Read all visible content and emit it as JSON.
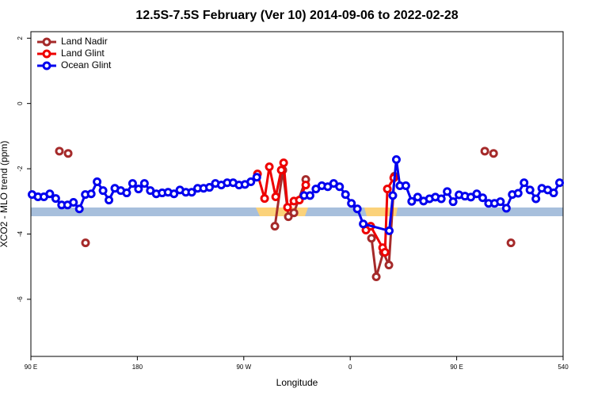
{
  "chart_data": {
    "type": "line",
    "title": "12.5S-7.5S February (Ver 10)   2014-09-06 to 2022-02-28",
    "x_label": "Longitude",
    "y_label": "XCO2 - MLO trend (ppm)",
    "xlim": [
      90,
      540
    ],
    "ylim": [
      -7.75,
      2.2
    ],
    "xticks": [
      {
        "value": 90,
        "label": "90 E"
      },
      180,
      {
        "value": 270,
        "label": "90 W"
      },
      {
        "value": 360,
        "label": "0"
      },
      {
        "value": 450,
        "label": "90 E"
      },
      540
    ],
    "yticks": [
      2,
      0,
      -2,
      -4,
      -6
    ],
    "legend": "top-left",
    "series": [
      {
        "name": "Land Nadir",
        "color": "#a52a2a",
        "x": [
          114.1,
          null,
          121.5,
          null,
          136.2,
          null,
          296.3,
          303,
          307.7,
          312.4,
          322.4,
          null,
          378,
          382,
          388,
          392.7,
          397.4,
          null,
          473.8,
          null,
          481.2,
          null,
          495.9
        ],
        "values": [
          -1.46,
          null,
          -1.53,
          null,
          -4.27,
          null,
          -3.76,
          -2.04,
          -3.47,
          -3.35,
          -2.33,
          null,
          -4.13,
          -5.31,
          -4.56,
          -4.95,
          -2.23,
          null,
          -1.46,
          null,
          -1.53,
          null,
          -4.27
        ]
      },
      {
        "name": "Land Glint",
        "color": "#ee0000",
        "x": [
          281.6,
          287.6,
          291.6,
          297,
          301.7,
          303.7,
          307,
          312.4,
          317,
          322.4,
          null,
          373.3,
          377.3,
          387.4,
          389.4,
          391.4,
          396.8
        ],
        "values": [
          -2.16,
          -2.91,
          -1.94,
          -2.86,
          -2.04,
          -1.82,
          -3.18,
          -2.99,
          -2.96,
          -2.5,
          null,
          -3.88,
          -3.76,
          -4.42,
          -4.56,
          -2.62,
          -2.28
        ]
      },
      {
        "name": "Ocean Glint",
        "color": "#0000ee",
        "x": [
          91,
          96,
          101,
          106,
          111,
          116,
          121,
          126,
          131,
          136,
          141,
          146,
          151,
          156,
          161,
          166,
          171,
          176,
          181,
          186,
          191,
          196,
          201,
          206,
          211,
          216,
          221,
          226,
          231,
          236,
          241,
          246,
          251,
          256,
          261,
          266,
          271,
          276,
          281,
          null,
          321,
          326,
          331,
          336,
          341,
          346,
          351,
          356,
          361,
          366,
          371,
          393,
          396,
          399,
          402,
          407,
          412,
          417,
          422,
          427,
          432,
          437,
          442,
          447,
          452,
          457,
          462,
          467,
          472,
          477,
          482,
          487,
          492,
          497,
          502,
          507,
          512,
          517,
          522,
          527,
          532,
          537
        ],
        "values": [
          -2.79,
          -2.86,
          -2.86,
          -2.77,
          -2.91,
          -3.11,
          -3.11,
          -3.03,
          -3.23,
          -2.79,
          -2.77,
          -2.4,
          -2.67,
          -2.96,
          -2.6,
          -2.67,
          -2.74,
          -2.45,
          -2.62,
          -2.45,
          -2.67,
          -2.77,
          -2.74,
          -2.72,
          -2.77,
          -2.65,
          -2.72,
          -2.72,
          -2.6,
          -2.6,
          -2.57,
          -2.45,
          -2.5,
          -2.43,
          -2.43,
          -2.5,
          -2.48,
          -2.4,
          -2.26,
          null,
          -2.82,
          -2.82,
          -2.62,
          -2.52,
          -2.55,
          -2.45,
          -2.55,
          -2.79,
          -3.06,
          -3.23,
          -3.69,
          -3.9,
          -2.82,
          -1.72,
          -2.52,
          -2.52,
          -3.0,
          -2.87,
          -2.99,
          -2.92,
          -2.87,
          -2.92,
          -2.7,
          -3.01,
          -2.8,
          -2.84,
          -2.87,
          -2.77,
          -2.89,
          -3.06,
          -3.06,
          -3.01,
          -3.21,
          -2.79,
          -2.75,
          -2.43,
          -2.65,
          -2.92,
          -2.6,
          -2.65,
          -2.74,
          -2.43
        ]
      }
    ]
  }
}
